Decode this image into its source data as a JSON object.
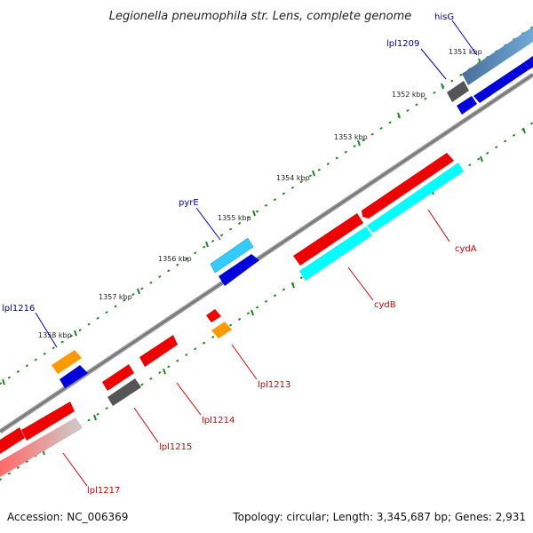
{
  "title": "Legionella pneumophila str. Lens, complete genome",
  "footer": {
    "accession": "Accession: NC_006369",
    "topology": "Topology: circular; Length: 3,345,687 bp; Genes: 2,931"
  },
  "ticks": [
    "1351 kbp",
    "1352 kbp",
    "1353 kbp",
    "1354 kbp",
    "1355 kbp",
    "1356 kbp",
    "1357 kbp",
    "1358 kbp"
  ],
  "genes": [
    {
      "name": "hisG",
      "strand": "forward",
      "color": "#0000aa"
    },
    {
      "name": "lpl1209",
      "strand": "forward",
      "color": "#0000aa"
    },
    {
      "name": "pyrE",
      "strand": "forward",
      "color": "#0000aa"
    },
    {
      "name": "lpl1216",
      "strand": "forward",
      "color": "#0000aa"
    },
    {
      "name": "cydA",
      "strand": "reverse",
      "color": "#dd0000"
    },
    {
      "name": "cydB",
      "strand": "reverse",
      "color": "#dd0000"
    },
    {
      "name": "lpl1213",
      "strand": "reverse",
      "color": "#dd0000"
    },
    {
      "name": "lpl1214",
      "strand": "reverse",
      "color": "#dd0000"
    },
    {
      "name": "lpl1215",
      "strand": "reverse",
      "color": "#dd0000"
    },
    {
      "name": "lpl1217",
      "strand": "reverse",
      "color": "#dd0000"
    }
  ],
  "colors": {
    "backbone": "#8a8a8a",
    "forward_cds": "#0000dd",
    "reverse_cds": "#ee0000",
    "gene_bar_light": "#33ccff",
    "gene_bar_dark": "#555555",
    "orange_feature": "#ff9900",
    "cyan_feature": "#00ffff",
    "tick_dots": "#228822"
  }
}
